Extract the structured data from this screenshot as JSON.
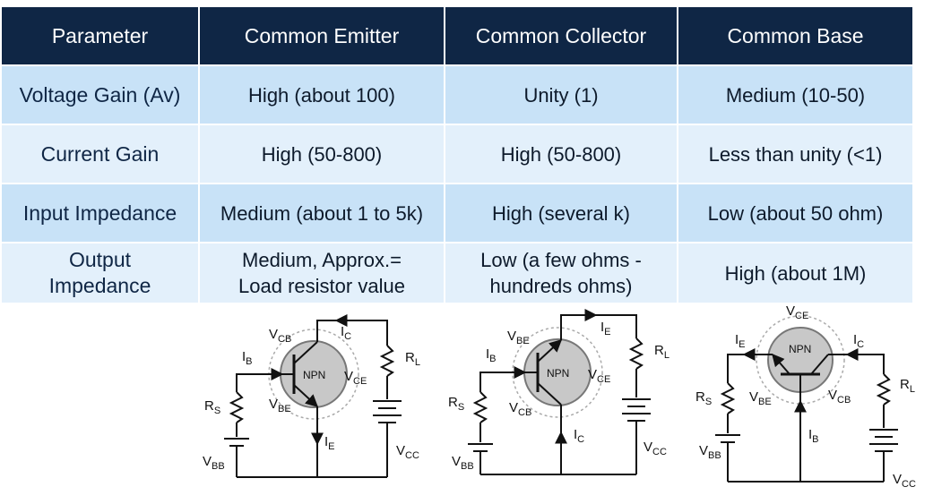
{
  "table": {
    "headers": [
      "Parameter",
      "Common Emitter",
      "Common Collector",
      "Common Base"
    ],
    "rows": [
      {
        "param": "Voltage Gain (Av)",
        "ce": "High (about 100)",
        "cc": "Unity (1)",
        "cb": "Medium (10-50)"
      },
      {
        "param": "Current Gain",
        "ce": "High (50-800)",
        "cc": "High (50-800)",
        "cb": "Less than unity (<1)"
      },
      {
        "param": "Input Impedance",
        "ce": "Medium (about 1 to 5k)",
        "cc": "High (several k)",
        "cb": "Low (about 50 ohm)"
      },
      {
        "param_l1": "Output",
        "param_l2": "Impedance",
        "ce_l1": "Medium, Approx.=",
        "ce_l2": "Load resistor value",
        "cc_l1": "Low (a few ohms -",
        "cc_l2": "hundreds ohms)",
        "cb": "High (about 1M)"
      }
    ]
  },
  "circuits": {
    "transistor_label": "NPN",
    "symbols": {
      "V": "V",
      "I": "I",
      "R": "R",
      "CB": "CB",
      "CE": "CE",
      "BE": "BE",
      "B": "B",
      "C": "C",
      "E": "E",
      "S": "S",
      "L": "L",
      "BB": "BB",
      "CC": "CC"
    }
  }
}
